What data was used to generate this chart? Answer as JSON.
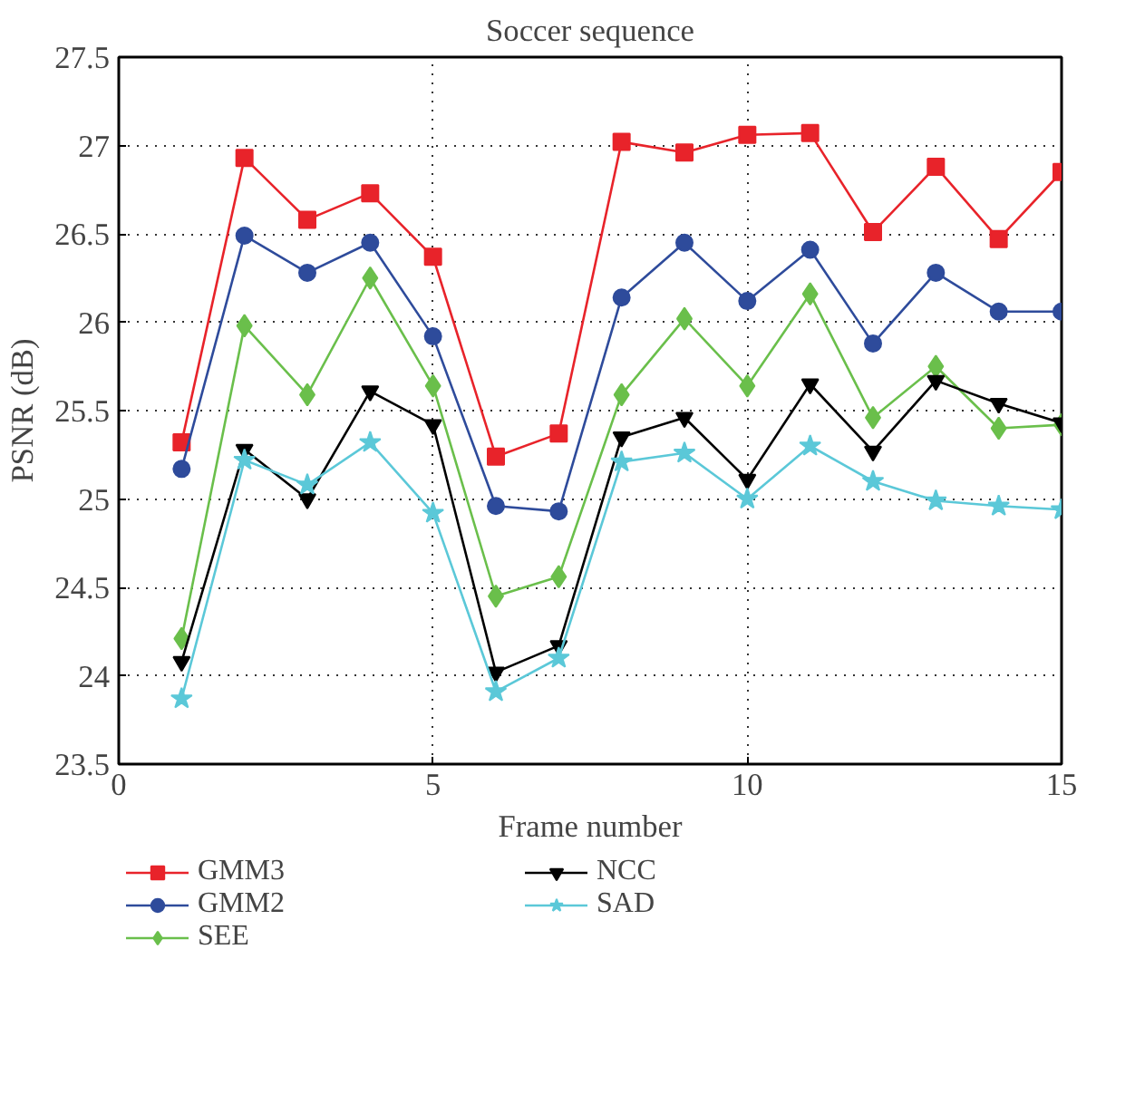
{
  "chart_data": {
    "type": "line",
    "title": "Soccer sequence",
    "xlabel": "Frame number",
    "ylabel": "PSNR (dB)",
    "x": [
      1,
      2,
      3,
      4,
      5,
      6,
      7,
      8,
      9,
      10,
      11,
      12,
      13,
      14,
      15
    ],
    "xlim": [
      0,
      15
    ],
    "xticks": [
      0,
      5,
      10,
      15
    ],
    "ylim": [
      23.5,
      27.5
    ],
    "yticks": [
      23.5,
      24,
      24.5,
      25,
      25.5,
      26,
      26.5,
      27,
      27.5
    ],
    "grid": true,
    "legend": "bottom",
    "line_style": "solid",
    "series": [
      {
        "name": "GMM3",
        "color": "#e8232a",
        "marker": "square",
        "values": [
          25.32,
          26.93,
          26.58,
          26.73,
          26.37,
          25.24,
          25.37,
          27.02,
          26.96,
          27.06,
          27.07,
          26.51,
          26.88,
          26.47,
          26.85
        ]
      },
      {
        "name": "GMM2",
        "color": "#2e4b9b",
        "marker": "circle",
        "values": [
          25.17,
          26.49,
          26.28,
          26.45,
          25.92,
          24.96,
          24.93,
          26.14,
          26.45,
          26.12,
          26.41,
          25.88,
          26.28,
          26.06,
          26.06
        ]
      },
      {
        "name": "SEE",
        "color": "#6abf4b",
        "marker": "diamond",
        "values": [
          24.21,
          25.98,
          25.59,
          26.25,
          25.64,
          24.45,
          24.56,
          25.59,
          26.02,
          25.64,
          26.16,
          25.46,
          25.75,
          25.4,
          25.42
        ]
      },
      {
        "name": "NCC",
        "color": "#000000",
        "marker": "triangle",
        "values": [
          24.08,
          25.28,
          25.0,
          25.61,
          25.42,
          24.02,
          24.17,
          25.35,
          25.46,
          25.11,
          25.65,
          25.27,
          25.67,
          25.54,
          25.43
        ]
      },
      {
        "name": "SAD",
        "color": "#5bc8d8",
        "marker": "star",
        "values": [
          23.87,
          25.22,
          25.08,
          25.32,
          24.92,
          23.91,
          24.1,
          25.21,
          25.26,
          25.0,
          25.3,
          25.1,
          24.99,
          24.96,
          24.94
        ]
      }
    ]
  }
}
